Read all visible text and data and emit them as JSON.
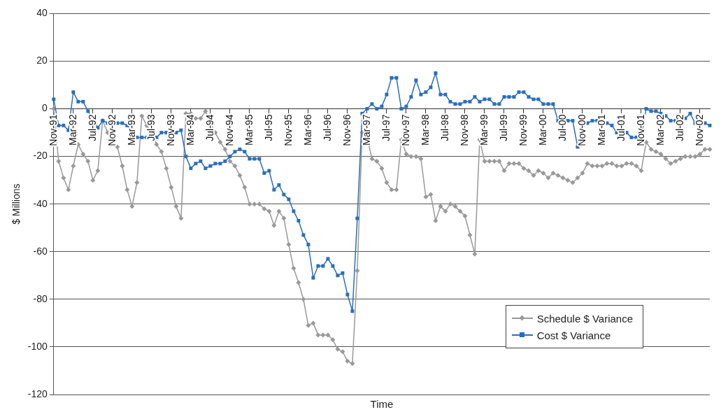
{
  "chart_data": {
    "type": "line",
    "xlabel": "Time",
    "ylabel": "$ Millions",
    "categories": [
      "Nov-91",
      null,
      null,
      null,
      "Mar-92",
      null,
      null,
      null,
      "Jul-92",
      null,
      null,
      null,
      "Nov-92",
      null,
      null,
      null,
      "Mar-93",
      null,
      null,
      null,
      "Jul-93",
      null,
      null,
      null,
      "Nov-93",
      null,
      null,
      null,
      "Mar-94",
      null,
      null,
      null,
      "Jul-94",
      null,
      null,
      null,
      "Nov-94",
      null,
      null,
      null,
      "Mar-95",
      null,
      null,
      null,
      "Jul-95",
      null,
      null,
      null,
      "Nov-95",
      null,
      null,
      null,
      "Mar-96",
      null,
      null,
      null,
      "Jul-96",
      null,
      null,
      null,
      "Nov-96",
      null,
      null,
      null,
      "Mar-97",
      null,
      null,
      null,
      "Jul-97",
      null,
      null,
      null,
      "Nov-97",
      null,
      null,
      null,
      "Mar-98",
      null,
      null,
      null,
      "Jul-98",
      null,
      null,
      null,
      "Nov-98",
      null,
      null,
      null,
      "Mar-99",
      null,
      null,
      null,
      "Jul-99",
      null,
      null,
      null,
      "Nov-99",
      null,
      null,
      null,
      "Mar-00",
      null,
      null,
      null,
      "Jul-00",
      null,
      null,
      null,
      "Nov-00",
      null,
      null,
      null,
      "Mar-01",
      null,
      null,
      null,
      "Jul-01",
      null,
      null,
      null,
      "Nov-01",
      null,
      null,
      null,
      "Mar-02",
      null,
      null,
      null,
      "Jul-02",
      null,
      null,
      null,
      "Nov-02",
      null,
      null
    ],
    "series": [
      {
        "name": "Schedule $ Variance",
        "color": "#999999",
        "marker": "diamond",
        "values": [
          0,
          -22,
          -29,
          -34,
          -24,
          -15,
          -19,
          -22,
          -30,
          -26,
          -5,
          -10,
          -13,
          -16,
          -24,
          -34,
          -41,
          -31,
          -3,
          -7,
          -10,
          -15,
          -18,
          -25,
          -33,
          -41,
          -46,
          -2,
          -2,
          -4,
          -4,
          -1,
          -6,
          -10,
          -14,
          -17,
          -22,
          -24,
          -28,
          -33,
          -40,
          -40,
          -40,
          -42,
          -43,
          -49,
          -43,
          -46,
          -57,
          -67,
          -73,
          -80,
          -91,
          -90,
          -95,
          -95,
          -95,
          -97,
          -101,
          -102,
          -106,
          -107,
          -68,
          -10,
          -12,
          -21,
          -22,
          -25,
          -31,
          -34,
          -34,
          -13,
          -19,
          -20,
          -20,
          -21,
          -37,
          -36,
          -47,
          -41,
          -43,
          -40,
          -41,
          -43,
          -45,
          -53,
          -61,
          -13,
          -22,
          -22,
          -22,
          -22,
          -26,
          -23,
          -23,
          -23,
          -25,
          -26,
          -28,
          -26,
          -27,
          -29,
          -27,
          -28,
          -29,
          -30,
          -31,
          -29,
          -27,
          -23,
          -24,
          -24,
          -24,
          -23,
          -23,
          -24,
          -24,
          -23,
          -23,
          -24,
          -26,
          -14,
          -17,
          -18,
          -19,
          -21,
          -23,
          -22,
          -21,
          -20,
          -20,
          -20,
          -19,
          -17,
          -17
        ]
      },
      {
        "name": "Cost $ Variance",
        "color": "#2a6ebb",
        "marker": "square",
        "values": [
          4,
          -7,
          -7,
          -9,
          7,
          3,
          3,
          -1,
          -4,
          -8,
          -5,
          -6,
          -6,
          -6,
          -6,
          -7,
          -9,
          -12,
          -12,
          -12,
          -11,
          -12,
          -10,
          -10,
          -10,
          -10,
          -9,
          -20,
          -25,
          -23,
          -22,
          -25,
          -24,
          -23,
          -23,
          -22,
          -20,
          -18,
          -17,
          -18,
          -21,
          -21,
          -21,
          -27,
          -26,
          -34,
          -32,
          -36,
          -38,
          -43,
          -47,
          -53,
          -57,
          -71,
          -66,
          -66,
          -63,
          -66,
          -70,
          -69,
          -78,
          -85,
          -46,
          -2,
          0,
          2,
          0,
          1,
          6,
          13,
          13,
          0,
          1,
          5,
          12,
          6,
          7,
          9,
          15,
          6,
          6,
          3,
          2,
          2,
          3,
          3,
          5,
          3,
          4,
          4,
          2,
          2,
          5,
          5,
          5,
          7,
          7,
          5,
          4,
          4,
          2,
          2,
          2,
          -5,
          -4,
          -5,
          -5,
          -16,
          -7,
          -6,
          -5,
          -5,
          -6,
          -6,
          -7,
          -10,
          -10,
          -10,
          -12,
          -12,
          -12,
          0,
          -1,
          -1,
          -2,
          -3,
          -5,
          -5,
          -4,
          -4,
          -2,
          -6,
          -6,
          -6,
          -7
        ]
      }
    ],
    "ylim": [
      -120,
      40
    ],
    "yticks": [
      -120,
      -100,
      -80,
      -60,
      -40,
      -20,
      0,
      20,
      40
    ],
    "grid": "y",
    "legend": "bottom right"
  }
}
